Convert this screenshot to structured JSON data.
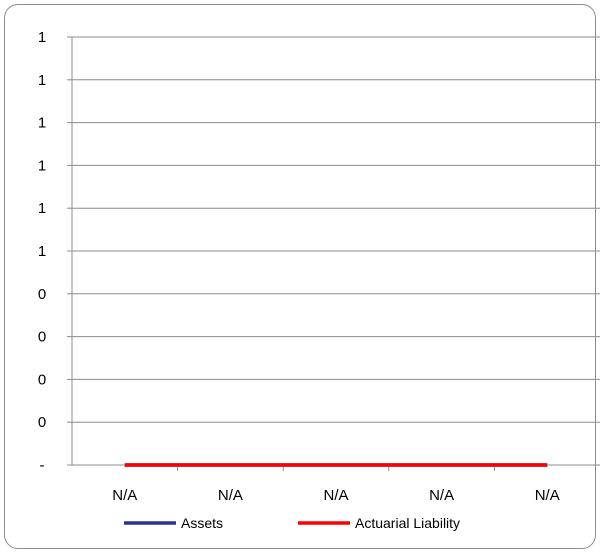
{
  "chart_data": {
    "type": "line",
    "title": "",
    "xlabel": "",
    "ylabel": "",
    "categories": [
      "N/A",
      "N/A",
      "N/A",
      "N/A",
      "N/A"
    ],
    "y_tick_labels": [
      "-",
      "0",
      "0",
      "0",
      "0",
      "1",
      "1",
      "1",
      "1",
      "1",
      "1"
    ],
    "ylim": [
      0,
      1
    ],
    "grid": true,
    "legend_position": "bottom",
    "series": [
      {
        "name": "Assets",
        "values": [
          0,
          0,
          0,
          0,
          0
        ],
        "color": "#2e3192"
      },
      {
        "name": "Actuarial Liability",
        "values": [
          0,
          0,
          0,
          0,
          0
        ],
        "color": "#ff0000"
      }
    ]
  }
}
